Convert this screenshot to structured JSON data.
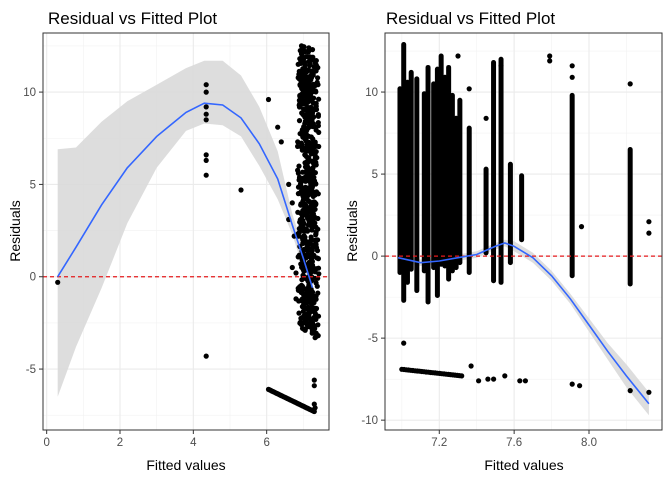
{
  "chart_data": [
    {
      "type": "scatter",
      "title": "Residual vs Fitted Plot",
      "xlabel": "Fitted values",
      "ylabel": "Residuals",
      "xlim": [
        -0.1,
        7.7
      ],
      "ylim": [
        -8.3,
        13.2
      ],
      "xticks": [
        0,
        2,
        4,
        6
      ],
      "yticks": [
        -5,
        0,
        5,
        10
      ],
      "grid": true,
      "reference_line": {
        "y": 0,
        "color": "#e41a1c",
        "style": "dashed"
      },
      "colors": {
        "points": "#000000",
        "smooth": "#3366ff",
        "band": "#d9d9d9"
      },
      "smooth": {
        "x": [
          0.3,
          0.8,
          1.5,
          2.2,
          3.0,
          3.8,
          4.3,
          4.8,
          5.3,
          5.8,
          6.3,
          6.7,
          7.0,
          7.25
        ],
        "y": [
          0.0,
          1.6,
          3.9,
          5.9,
          7.6,
          8.9,
          9.4,
          9.3,
          8.6,
          7.2,
          5.3,
          2.8,
          1.0,
          -0.6
        ],
        "lower": [
          -6.5,
          -3.8,
          -0.6,
          2.9,
          5.9,
          7.9,
          8.3,
          8.2,
          7.6,
          6.0,
          4.2,
          2.3,
          0.4,
          -1.6
        ],
        "upper": [
          6.9,
          7.0,
          8.4,
          9.5,
          10.4,
          11.3,
          11.7,
          11.7,
          10.9,
          9.2,
          6.8,
          3.4,
          1.6,
          0.3
        ]
      },
      "points": [
        [
          0.3,
          -0.3
        ],
        [
          4.35,
          10.4
        ],
        [
          4.35,
          10.0
        ],
        [
          4.35,
          9.2
        ],
        [
          4.35,
          8.8
        ],
        [
          4.35,
          8.5
        ],
        [
          4.35,
          6.6
        ],
        [
          4.35,
          6.3
        ],
        [
          4.35,
          5.5
        ],
        [
          4.35,
          -4.3
        ],
        [
          5.3,
          4.7
        ],
        [
          6.05,
          9.6
        ],
        [
          6.3,
          8.1
        ],
        [
          6.4,
          7.3
        ],
        [
          6.6,
          5.0
        ],
        [
          6.6,
          3.1
        ],
        [
          6.7,
          0.5
        ],
        [
          6.8,
          0.2
        ],
        [
          6.7,
          4.0
        ],
        [
          6.75,
          2.2
        ],
        [
          6.8,
          -1.2
        ]
      ],
      "line_points": {
        "x": [
          6.05,
          7.3
        ],
        "y": [
          -6.1,
          -7.3
        ],
        "n": 40
      },
      "column_points": [
        {
          "x": 6.95,
          "ymin": -2.6,
          "ymax": 12.5,
          "n": 140
        },
        {
          "x": 7.05,
          "ymin": -2.9,
          "ymax": 12.2,
          "n": 140
        },
        {
          "x": 7.15,
          "ymin": -2.7,
          "ymax": 12.4,
          "n": 140
        },
        {
          "x": 7.25,
          "ymin": -2.5,
          "ymax": 12.3,
          "n": 140
        },
        {
          "x": 7.32,
          "ymin": -3.3,
          "ymax": 11.6,
          "n": 90
        }
      ],
      "low_points": [
        [
          7.3,
          -5.6
        ],
        [
          7.3,
          -5.9
        ],
        [
          7.3,
          -6.9
        ],
        [
          7.32,
          -7.1
        ]
      ]
    },
    {
      "type": "scatter",
      "title": "Residual vs Fitted Plot",
      "xlabel": "Fitted values",
      "ylabel": "Residuals",
      "xlim": [
        6.91,
        8.39
      ],
      "ylim": [
        -10.6,
        13.6
      ],
      "xticks": [
        7.2,
        7.6,
        8.0
      ],
      "yticks": [
        -10,
        -5,
        0,
        5,
        10
      ],
      "grid": true,
      "reference_line": {
        "y": 0,
        "color": "#e41a1c",
        "style": "dashed"
      },
      "colors": {
        "points": "#000000",
        "smooth": "#3366ff",
        "band": "#d9d9d9"
      },
      "smooth": {
        "x": [
          6.98,
          7.1,
          7.2,
          7.3,
          7.4,
          7.5,
          7.55,
          7.6,
          7.7,
          7.8,
          7.9,
          8.0,
          8.1,
          8.2,
          8.32
        ],
        "y": [
          -0.1,
          -0.4,
          -0.3,
          -0.1,
          0.1,
          0.6,
          0.8,
          0.6,
          -0.1,
          -1.2,
          -2.6,
          -4.2,
          -5.8,
          -7.3,
          -9.0
        ],
        "lower": [
          -0.3,
          -0.6,
          -0.5,
          -0.3,
          -0.1,
          0.4,
          0.6,
          0.3,
          -0.4,
          -1.5,
          -2.9,
          -4.6,
          -6.3,
          -8.0,
          -9.7
        ],
        "upper": [
          0.1,
          -0.2,
          -0.1,
          0.1,
          0.3,
          0.8,
          1.0,
          0.9,
          0.2,
          -0.9,
          -2.3,
          -3.8,
          -5.3,
          -6.6,
          -8.3
        ]
      },
      "columns": [
        {
          "x": 6.99,
          "ymin": -1.0,
          "ymax": 10.2
        },
        {
          "x": 7.01,
          "ymin": -2.7,
          "ymax": 12.9
        },
        {
          "x": 7.03,
          "ymin": -1.6,
          "ymax": 10.6
        },
        {
          "x": 7.05,
          "ymin": -0.8,
          "ymax": 11.2
        },
        {
          "x": 7.08,
          "ymin": -2.1,
          "ymax": 10.8
        },
        {
          "x": 7.12,
          "ymin": -0.9,
          "ymax": 9.9
        },
        {
          "x": 7.14,
          "ymin": -2.8,
          "ymax": 11.5
        },
        {
          "x": 7.17,
          "ymin": -0.7,
          "ymax": 10.5
        },
        {
          "x": 7.19,
          "ymin": -2.4,
          "ymax": 11.4
        },
        {
          "x": 7.21,
          "ymin": -0.5,
          "ymax": 12.2
        },
        {
          "x": 7.23,
          "ymin": -0.6,
          "ymax": 10.9
        },
        {
          "x": 7.25,
          "ymin": -1.4,
          "ymax": 11.5
        },
        {
          "x": 7.27,
          "ymin": -0.9,
          "ymax": 9.8
        },
        {
          "x": 7.29,
          "ymin": -0.7,
          "ymax": 8.4
        },
        {
          "x": 7.31,
          "ymin": -0.4,
          "ymax": 9.5
        },
        {
          "x": 7.36,
          "ymin": -1.0,
          "ymax": 7.8
        },
        {
          "x": 7.45,
          "ymin": 0.2,
          "ymax": 5.3
        },
        {
          "x": 7.49,
          "ymin": -1.5,
          "ymax": 11.8
        },
        {
          "x": 7.53,
          "ymin": -1.6,
          "ymax": 12.0
        },
        {
          "x": 7.58,
          "ymin": -0.4,
          "ymax": 5.6
        },
        {
          "x": 7.64,
          "ymin": 1.0,
          "ymax": 4.9
        },
        {
          "x": 7.91,
          "ymin": -1.2,
          "ymax": 9.8
        },
        {
          "x": 8.22,
          "ymin": -1.7,
          "ymax": 6.5
        }
      ],
      "points": [
        [
          7.37,
          -6.7
        ],
        [
          7.41,
          -7.6
        ],
        [
          7.46,
          -7.5
        ],
        [
          7.49,
          -7.5
        ],
        [
          7.55,
          -7.3
        ],
        [
          7.63,
          -7.6
        ],
        [
          7.66,
          -7.6
        ],
        [
          7.91,
          -7.8
        ],
        [
          7.95,
          -7.9
        ],
        [
          8.22,
          -8.2
        ],
        [
          8.32,
          -8.3
        ],
        [
          8.32,
          1.4
        ],
        [
          8.32,
          2.1
        ],
        [
          7.96,
          1.8
        ],
        [
          7.01,
          -5.3
        ],
        [
          7.91,
          10.9
        ],
        [
          7.91,
          11.6
        ],
        [
          8.22,
          10.5
        ],
        [
          7.79,
          12.2
        ],
        [
          7.79,
          11.9
        ],
        [
          7.36,
          10.2
        ],
        [
          7.3,
          12.2
        ],
        [
          7.45,
          8.4
        ],
        [
          7.53,
          11.6
        ]
      ],
      "line_points": {
        "x": [
          7.0,
          7.32
        ],
        "y": [
          -6.9,
          -7.3
        ],
        "n": 28
      }
    }
  ]
}
